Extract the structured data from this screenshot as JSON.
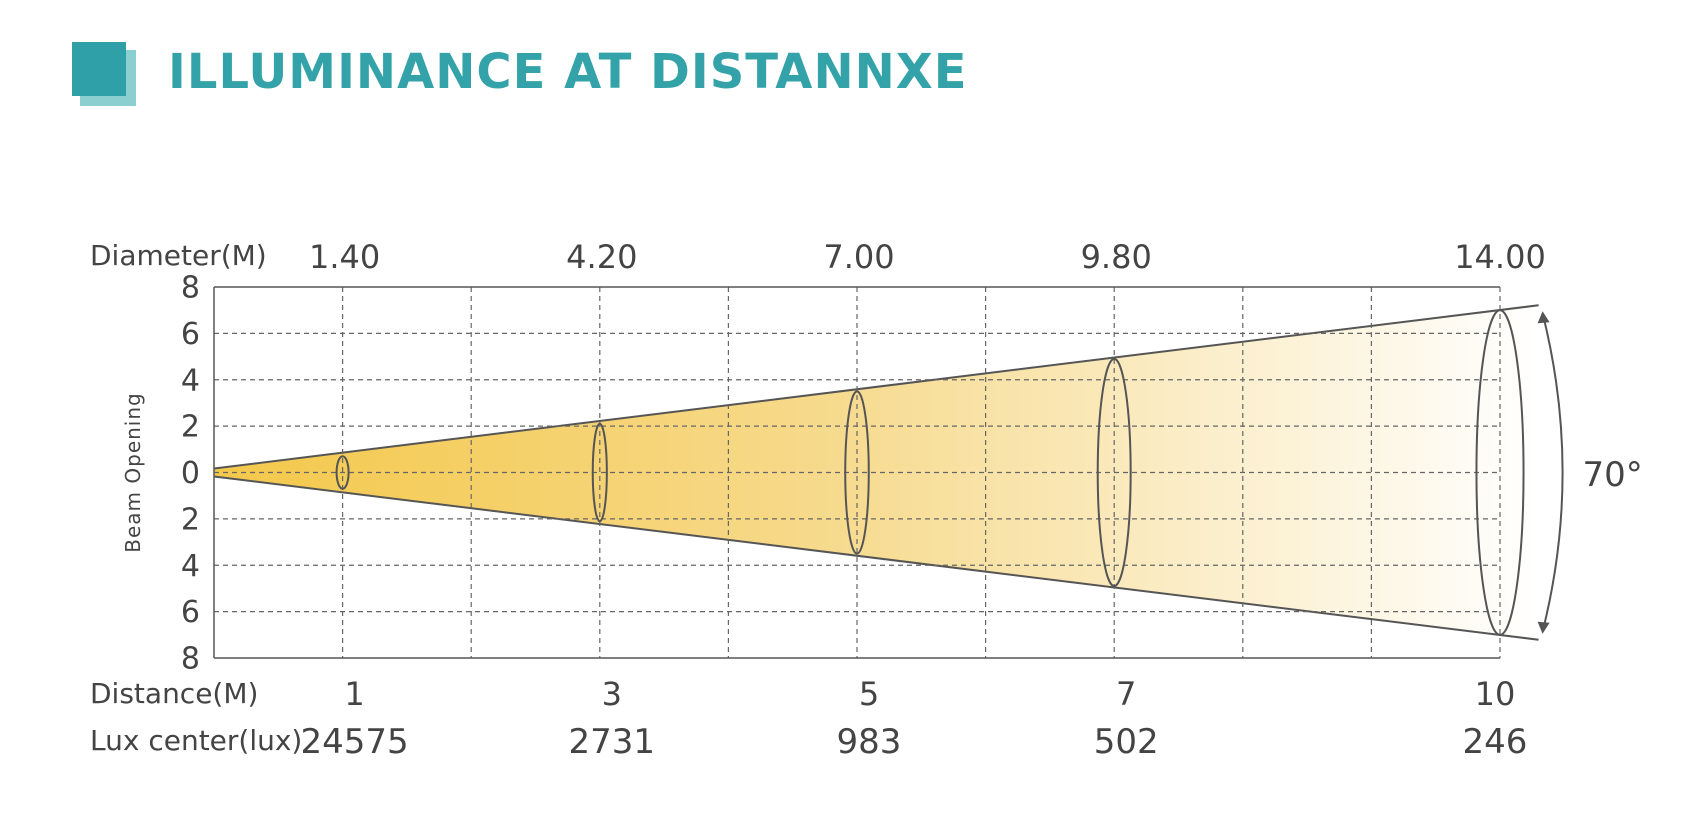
{
  "header": {
    "title": "ILLUMINANCE AT DISTANNXE"
  },
  "chart_data": {
    "type": "diagram",
    "row_labels": {
      "diameter": "Diameter(M)",
      "distance": "Distance(M)",
      "lux": "Lux center(lux)"
    },
    "ylabel": "Beam Opening",
    "y_ticks": [
      "8",
      "6",
      "4",
      "2",
      "0",
      "2",
      "4",
      "6",
      "8"
    ],
    "ylim": [
      -8,
      8
    ],
    "xlim": [
      0,
      10
    ],
    "beam_angle_deg": 70,
    "beam_angle_label": "70°",
    "points": [
      {
        "distance": 1,
        "distance_label": "1",
        "diameter": 1.4,
        "diameter_label": "1.40",
        "lux": 24575,
        "lux_label": "24575"
      },
      {
        "distance": 3,
        "distance_label": "3",
        "diameter": 4.2,
        "diameter_label": "4.20",
        "lux": 2731,
        "lux_label": "2731"
      },
      {
        "distance": 5,
        "distance_label": "5",
        "diameter": 7.0,
        "diameter_label": "7.00",
        "lux": 983,
        "lux_label": "983"
      },
      {
        "distance": 7,
        "distance_label": "7",
        "diameter": 9.8,
        "diameter_label": "9.80",
        "lux": 502,
        "lux_label": "502"
      },
      {
        "distance": 10,
        "distance_label": "10",
        "diameter": 14.0,
        "diameter_label": "14.00",
        "lux": 246,
        "lux_label": "246"
      }
    ],
    "colors": {
      "beam_start": "#f4c84a",
      "beam_end": "#ffffff",
      "grid": "#555555",
      "text": "#444444",
      "title": "#34a3a9"
    }
  }
}
